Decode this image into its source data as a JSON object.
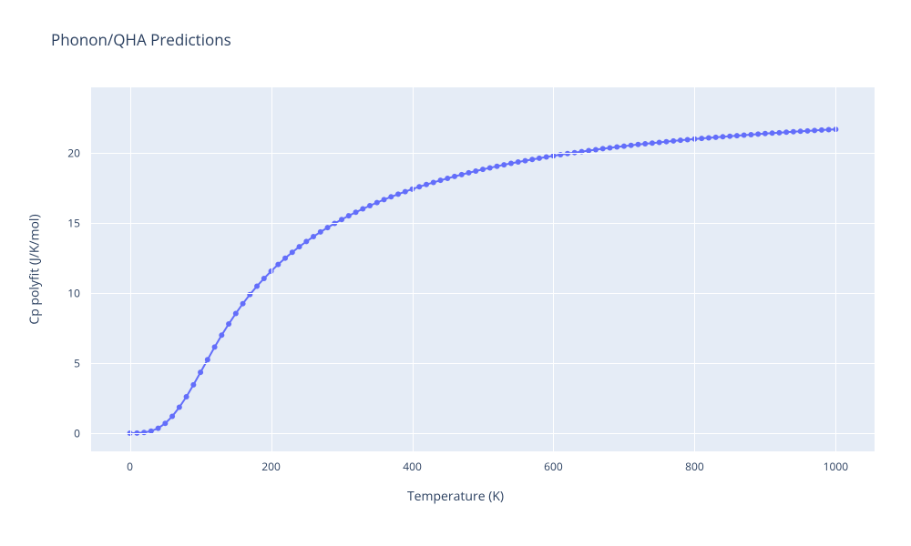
{
  "chart": {
    "type": "line-scatter",
    "title": "Phonon/QHA Predictions",
    "xlabel": "Temperature (K)",
    "ylabel": "Cp polyfit (J/K/mol)",
    "background_color": "#ffffff",
    "plot_bgcolor": "#e5ecf6",
    "grid_color": "#ffffff",
    "text_color": "#2a3f5f",
    "title_fontsize": 17,
    "axis_label_fontsize": 14,
    "tick_fontsize": 12,
    "xlim": [
      -55,
      1055
    ],
    "ylim": [
      -1.3,
      24.7
    ],
    "xticks": [
      0,
      200,
      400,
      600,
      800,
      1000
    ],
    "yticks": [
      0,
      5,
      10,
      15,
      20
    ],
    "line_color": "#636efa",
    "line_width": 2,
    "marker_size": 6,
    "marker_style": "circle",
    "x": [
      0,
      10,
      20,
      30,
      40,
      50,
      60,
      70,
      80,
      90,
      100,
      110,
      120,
      130,
      140,
      150,
      160,
      170,
      180,
      190,
      200,
      210,
      220,
      230,
      240,
      250,
      260,
      270,
      280,
      290,
      300,
      310,
      320,
      330,
      340,
      350,
      360,
      370,
      380,
      390,
      400,
      410,
      420,
      430,
      440,
      450,
      460,
      470,
      480,
      490,
      500,
      510,
      520,
      530,
      540,
      550,
      560,
      570,
      580,
      590,
      600,
      610,
      620,
      630,
      640,
      650,
      660,
      670,
      680,
      690,
      700,
      710,
      720,
      730,
      740,
      750,
      760,
      770,
      780,
      790,
      800,
      810,
      820,
      830,
      840,
      850,
      860,
      870,
      880,
      890,
      900,
      910,
      920,
      930,
      940,
      950,
      960,
      970,
      980,
      990,
      1000
    ],
    "y": [
      0.0,
      0.01,
      0.05,
      0.15,
      0.35,
      0.7,
      1.2,
      1.85,
      2.6,
      3.45,
      4.35,
      5.25,
      6.15,
      7.0,
      7.8,
      8.55,
      9.25,
      9.9,
      10.5,
      11.05,
      11.57,
      12.05,
      12.5,
      12.92,
      13.32,
      13.69,
      14.04,
      14.37,
      14.68,
      14.98,
      15.26,
      15.53,
      15.78,
      16.02,
      16.25,
      16.47,
      16.68,
      16.88,
      17.07,
      17.25,
      17.43,
      17.6,
      17.76,
      17.91,
      18.06,
      18.2,
      18.34,
      18.47,
      18.6,
      18.72,
      18.84,
      18.95,
      19.06,
      19.17,
      19.27,
      19.37,
      19.46,
      19.55,
      19.64,
      19.73,
      19.81,
      19.89,
      19.97,
      20.04,
      20.11,
      20.18,
      20.25,
      20.32,
      20.38,
      20.44,
      20.5,
      20.56,
      20.62,
      20.67,
      20.72,
      20.77,
      20.82,
      20.87,
      20.92,
      20.96,
      21.01,
      21.05,
      21.09,
      21.13,
      21.17,
      21.21,
      21.25,
      21.29,
      21.32,
      21.36,
      21.4,
      21.43,
      21.46,
      21.5,
      21.53,
      21.56,
      21.59,
      21.62,
      21.65,
      21.68,
      21.7
    ]
  }
}
